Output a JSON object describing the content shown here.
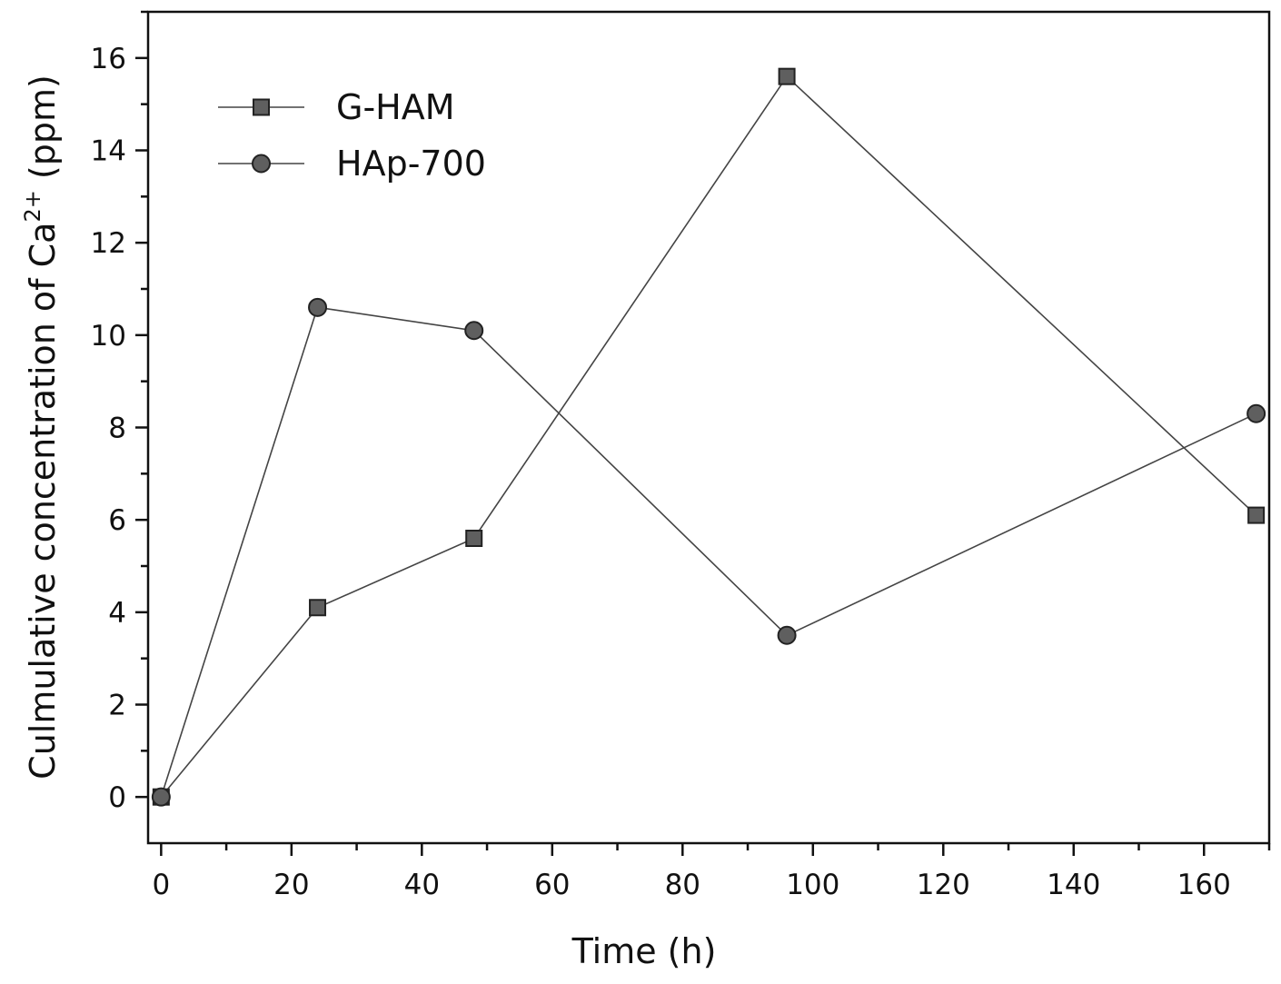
{
  "chart_data": {
    "type": "line",
    "xlabel": "Time (h)",
    "ylabel": {
      "main": "Culmulative concentration of Ca",
      "sup": "2+",
      "unit": " (ppm)"
    },
    "xlim": [
      -2,
      170
    ],
    "ylim": [
      -1,
      17
    ],
    "xticks": [
      0,
      20,
      40,
      60,
      80,
      100,
      120,
      140,
      160
    ],
    "yticks": [
      0,
      2,
      4,
      6,
      8,
      10,
      12,
      14,
      16
    ],
    "x_minor_step": 10,
    "y_minor_step": 1,
    "legend_position": "top-left",
    "grid": false,
    "series": [
      {
        "name": "G-HAM",
        "marker": "square",
        "x": [
          0,
          24,
          48,
          96,
          168
        ],
        "y": [
          0,
          4.1,
          5.6,
          15.6,
          6.1
        ]
      },
      {
        "name": "HAp-700",
        "marker": "circle",
        "x": [
          0,
          24,
          48,
          96,
          168
        ],
        "y": [
          0,
          10.6,
          10.1,
          3.5,
          8.3
        ]
      }
    ]
  }
}
